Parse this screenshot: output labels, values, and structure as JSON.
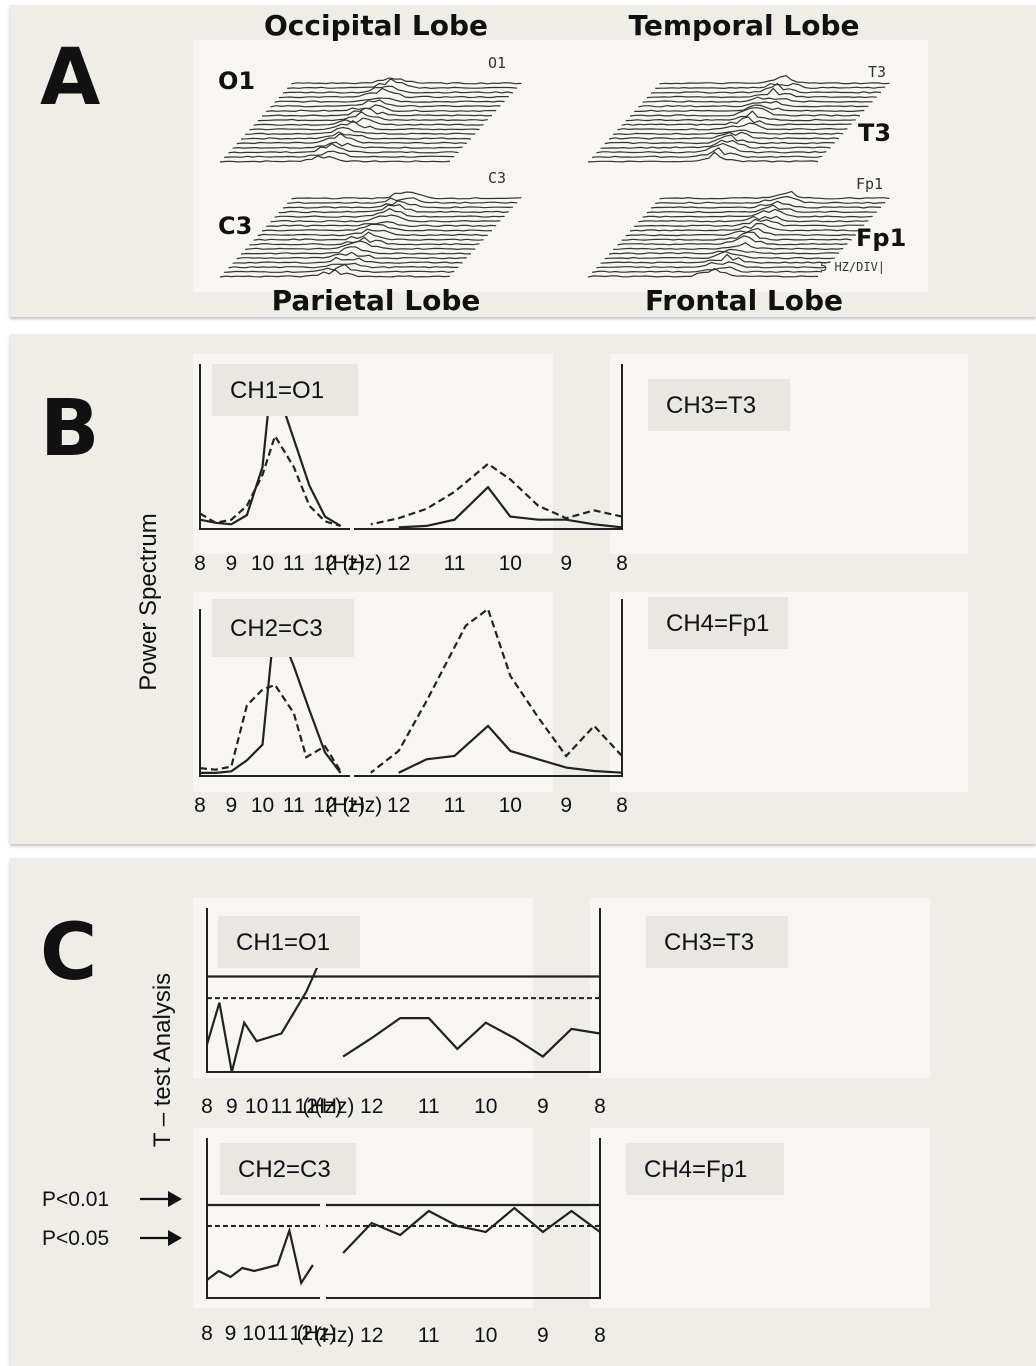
{
  "panelA": {
    "letter": "A",
    "lobes": {
      "occipital": "Occipital Lobe",
      "temporal": "Temporal Lobe",
      "parietal": "Parietal Lobe",
      "frontal": "Frontal Lobe"
    },
    "electrodes": {
      "o1": "O1",
      "t3": "T3",
      "c3": "C3",
      "fp1": "Fp1"
    },
    "handwritten": {
      "o1": "O1",
      "t3": "T3",
      "c3": "C3",
      "fp1": "Fp1",
      "scale": "5 HZ/DIV|"
    }
  },
  "panelB": {
    "letter": "B",
    "ylabel": "Power Spectrum"
  },
  "panelC": {
    "letter": "C",
    "ylabel": "T – test Analysis",
    "p001": "P<0.01",
    "p005": "P<0.05"
  },
  "chart_data": [
    {
      "type": "line",
      "panel": "B",
      "title": "CH1=O1",
      "ylabel": "Power Spectrum",
      "x_ticks": [
        "8",
        "9",
        "10",
        "11",
        "12",
        "(Hz)"
      ],
      "series": [
        {
          "style": "solid",
          "x": [
            8,
            8.5,
            9,
            9.5,
            10,
            10.3,
            11,
            11.5,
            12,
            12.5
          ],
          "y": [
            0.06,
            0.04,
            0.03,
            0.09,
            0.4,
            1.0,
            0.58,
            0.28,
            0.08,
            0.02
          ]
        },
        {
          "style": "dashed",
          "x": [
            8,
            8.5,
            9,
            9.5,
            10,
            10.4,
            11,
            11.5,
            12,
            12.5
          ],
          "y": [
            0.1,
            0.04,
            0.06,
            0.15,
            0.35,
            0.6,
            0.4,
            0.15,
            0.05,
            0.02
          ]
        }
      ]
    },
    {
      "type": "line",
      "panel": "B",
      "title": "CH3=T3",
      "ylabel": "Power Spectrum",
      "x_ticks": [
        "8",
        "9",
        "10",
        "11",
        "12",
        "(Hz)"
      ],
      "series": [
        {
          "style": "solid",
          "x": [
            8,
            8.5,
            9,
            9.5,
            10,
            10.4,
            11,
            11.5,
            12
          ],
          "y": [
            0.01,
            0.03,
            0.06,
            0.06,
            0.08,
            0.27,
            0.06,
            0.02,
            0.01
          ]
        },
        {
          "style": "dashed",
          "x": [
            8,
            8.5,
            9,
            9.5,
            10,
            10.4,
            11,
            11.5,
            12,
            12.5
          ],
          "y": [
            0.08,
            0.12,
            0.07,
            0.15,
            0.32,
            0.42,
            0.24,
            0.13,
            0.07,
            0.03
          ]
        }
      ]
    },
    {
      "type": "line",
      "panel": "B",
      "title": "CH2=C3",
      "ylabel": "Power Spectrum",
      "x_ticks": [
        "8",
        "9",
        "10",
        "11",
        "12",
        "(Hz)"
      ],
      "series": [
        {
          "style": "solid",
          "x": [
            8,
            8.5,
            9,
            9.5,
            10,
            10.4,
            11,
            11.5,
            12,
            12.5
          ],
          "y": [
            0.02,
            0.02,
            0.03,
            0.1,
            0.2,
            1.0,
            0.7,
            0.42,
            0.15,
            0.02
          ]
        },
        {
          "style": "dashed",
          "x": [
            8,
            8.5,
            9,
            9.5,
            10,
            10.4,
            11,
            11.4,
            12,
            12.5
          ],
          "y": [
            0.05,
            0.04,
            0.06,
            0.45,
            0.55,
            0.58,
            0.4,
            0.12,
            0.19,
            0.03
          ]
        }
      ]
    },
    {
      "type": "line",
      "panel": "B",
      "title": "CH4=Fp1",
      "ylabel": "Power Spectrum",
      "x_ticks": [
        "8",
        "9",
        "10",
        "11",
        "12",
        "(Hz)"
      ],
      "series": [
        {
          "style": "solid",
          "x": [
            8,
            8.5,
            9,
            9.5,
            10,
            10.4,
            11,
            11.5,
            12
          ],
          "y": [
            0.02,
            0.03,
            0.05,
            0.1,
            0.15,
            0.3,
            0.12,
            0.1,
            0.02
          ]
        },
        {
          "style": "dashed",
          "x": [
            8,
            8.5,
            9,
            9.5,
            10,
            10.4,
            10.8,
            11.5,
            12,
            12.5
          ],
          "y": [
            0.12,
            0.3,
            0.12,
            0.35,
            0.6,
            1.0,
            0.9,
            0.45,
            0.15,
            0.02
          ]
        }
      ]
    },
    {
      "type": "line",
      "panel": "C",
      "title": "CH1=O1",
      "ylabel": "T – test Analysis",
      "x_ticks": [
        "8",
        "9",
        "10",
        "11",
        "12",
        "(Hz)"
      ],
      "thresholds": {
        "p001": 0.62,
        "p005": 0.48
      },
      "series": [
        {
          "style": "solid",
          "x": [
            8,
            8.5,
            9,
            9.5,
            10,
            11,
            12,
            12.5
          ],
          "y": [
            0.18,
            0.45,
            0.0,
            0.32,
            0.2,
            0.25,
            0.52,
            0.7
          ]
        }
      ]
    },
    {
      "type": "line",
      "panel": "C",
      "title": "CH3=T3",
      "ylabel": "T – test Analysis",
      "x_ticks": [
        "8",
        "9",
        "10",
        "11",
        "12",
        "(Hz)"
      ],
      "thresholds": {
        "p001": 0.62,
        "p005": 0.48
      },
      "series": [
        {
          "style": "solid",
          "x": [
            8,
            8.5,
            9,
            9.5,
            10,
            10.5,
            11,
            11.5,
            12,
            12.5
          ],
          "y": [
            0.25,
            0.28,
            0.1,
            0.22,
            0.32,
            0.15,
            0.35,
            0.35,
            0.22,
            0.1
          ]
        }
      ]
    },
    {
      "type": "line",
      "panel": "C",
      "title": "CH2=C3",
      "ylabel": "T – test Analysis",
      "x_ticks": [
        "8",
        "9",
        "10",
        "11",
        "12",
        "(Hz)"
      ],
      "thresholds": {
        "p001": 0.62,
        "p005": 0.48
      },
      "series": [
        {
          "style": "solid",
          "x": [
            8,
            8.5,
            9,
            9.5,
            10,
            10.5,
            11,
            11.5,
            12,
            12.5
          ],
          "y": [
            0.12,
            0.18,
            0.14,
            0.2,
            0.18,
            0.2,
            0.22,
            0.45,
            0.1,
            0.22
          ]
        }
      ]
    },
    {
      "type": "line",
      "panel": "C",
      "title": "CH4=Fp1",
      "ylabel": "T – test Analysis",
      "x_ticks": [
        "8",
        "9",
        "10",
        "11",
        "12",
        "(Hz)"
      ],
      "thresholds": {
        "p001": 0.62,
        "p005": 0.48
      },
      "series": [
        {
          "style": "solid",
          "x": [
            8,
            8.5,
            9,
            9.5,
            10,
            10.5,
            11,
            11.5,
            12,
            12.5
          ],
          "y": [
            0.44,
            0.58,
            0.44,
            0.6,
            0.44,
            0.48,
            0.58,
            0.42,
            0.5,
            0.3
          ]
        }
      ]
    }
  ]
}
